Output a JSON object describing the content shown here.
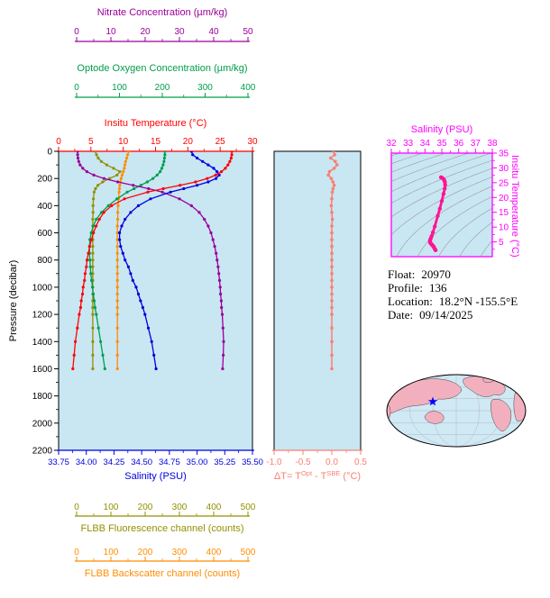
{
  "info": {
    "lines": [
      {
        "label": "Float:",
        "value": "20970"
      },
      {
        "label": "Profile:",
        "value": "136"
      },
      {
        "label": "Location:",
        "value": "18.2°N -155.5°E"
      },
      {
        "label": "Date:",
        "value": "09/14/2025"
      }
    ]
  },
  "colors": {
    "nitrate": "#990099",
    "oxygen": "#009e49",
    "temperature": "#ff0000",
    "salinity": "#0000dd",
    "fluorescence": "#919100",
    "backscatter": "#ff8c00",
    "delta_t": "#fa8072",
    "ts_profile": "#ff1493",
    "ts_frame": "#ff00ff",
    "plot_bg": "#c9e6f3",
    "map_land": "#f2b0bf",
    "map_ocean": "#cfe9f5",
    "map_star": "#0000ff",
    "contour": "#9a9a9a",
    "frame": "#000000"
  },
  "chart_data": [
    {
      "type": "line",
      "title": "Float vertical profiles vs pressure",
      "ylabel": "Pressure (decibar)",
      "ylim": [
        0,
        2200
      ],
      "y_ticks": [
        0,
        200,
        400,
        600,
        800,
        1000,
        1200,
        1400,
        1600,
        1800,
        2000,
        2200
      ],
      "pressure": [
        0,
        25,
        50,
        75,
        100,
        125,
        150,
        175,
        200,
        225,
        250,
        275,
        300,
        350,
        400,
        450,
        500,
        550,
        600,
        650,
        700,
        750,
        800,
        850,
        900,
        950,
        1000,
        1050,
        1100,
        1150,
        1200,
        1300,
        1400,
        1500,
        1600
      ],
      "series": [
        {
          "name": "nitrate",
          "label": "Nitrate Concentration (µm/kg)",
          "xlim": [
            0,
            50
          ],
          "ticks": [
            "0",
            "10",
            "20",
            "30",
            "40",
            "50"
          ],
          "values": [
            0.3,
            0.3,
            0.4,
            0.6,
            1.0,
            1.8,
            3.0,
            5.0,
            8.0,
            12.0,
            16.5,
            21.0,
            25.0,
            30.0,
            33.5,
            35.8,
            37.3,
            38.4,
            39.2,
            39.8,
            40.3,
            40.7,
            41.0,
            41.3,
            41.5,
            41.7,
            41.9,
            42.0,
            42.2,
            42.3,
            42.5,
            42.7,
            42.9,
            42.8,
            42.6
          ]
        },
        {
          "name": "oxygen",
          "label": "Optode Oxygen Concentration (µm/kg)",
          "xlim": [
            0,
            400
          ],
          "ticks": [
            "0",
            "100",
            "200",
            "300",
            "400"
          ],
          "values": [
            206,
            206,
            205,
            204,
            202,
            199,
            195,
            188,
            178,
            165,
            150,
            134,
            118,
            94,
            74,
            58,
            46,
            39,
            34,
            31,
            30,
            30,
            31,
            32,
            33,
            35,
            37,
            39,
            41,
            43,
            46,
            51,
            56,
            61,
            66
          ]
        },
        {
          "name": "temperature",
          "label": "Insitu Temperature (°C)",
          "xlim": [
            0,
            30
          ],
          "ticks": [
            "0",
            "5",
            "10",
            "15",
            "20",
            "25",
            "30"
          ],
          "values": [
            26.8,
            26.8,
            26.7,
            26.5,
            26.2,
            25.8,
            25.2,
            24.3,
            23.0,
            21.2,
            18.8,
            16.2,
            13.8,
            10.2,
            8.2,
            7.0,
            6.3,
            5.8,
            5.4,
            5.1,
            4.8,
            4.6,
            4.4,
            4.3,
            4.1,
            4.0,
            3.8,
            3.7,
            3.5,
            3.4,
            3.2,
            2.9,
            2.6,
            2.4,
            2.2
          ]
        },
        {
          "name": "salinity",
          "label": "Salinity (PSU)",
          "xlim": [
            33.75,
            35.5
          ],
          "ticks": [
            "33.75",
            "34.00",
            "34.25",
            "34.50",
            "34.75",
            "35.00",
            "35.25",
            "35.50"
          ],
          "values": [
            34.95,
            34.96,
            35.0,
            35.05,
            35.1,
            35.15,
            35.18,
            35.2,
            35.17,
            35.1,
            35.0,
            34.88,
            34.76,
            34.58,
            34.47,
            34.4,
            34.35,
            34.32,
            34.3,
            34.3,
            34.31,
            34.33,
            34.35,
            34.38,
            34.4,
            34.42,
            34.45,
            34.47,
            34.49,
            34.51,
            34.53,
            34.56,
            34.59,
            34.61,
            34.63
          ]
        },
        {
          "name": "fluorescence",
          "label": "FLBB Fluorescence channel (counts)",
          "xlim": [
            0,
            500
          ],
          "ticks": [
            "0",
            "100",
            "200",
            "300",
            "400",
            "500"
          ],
          "values": [
            55,
            58,
            63,
            72,
            88,
            108,
            126,
            118,
            96,
            76,
            62,
            55,
            51,
            49,
            48,
            48,
            47,
            47,
            47,
            47,
            47,
            47,
            47,
            47,
            47,
            47,
            47,
            47,
            47,
            47,
            47,
            47,
            47,
            47,
            47
          ]
        },
        {
          "name": "backscatter",
          "label": "FLBB Backscatter channel (counts)",
          "xlim": [
            0,
            500
          ],
          "ticks": [
            "0",
            "100",
            "200",
            "300",
            "400",
            "500"
          ],
          "values": [
            152,
            149,
            146,
            143,
            141,
            139,
            136,
            133,
            130,
            128,
            126,
            125,
            124,
            122,
            121,
            120,
            120,
            119,
            119,
            119,
            119,
            119,
            119,
            119,
            119,
            119,
            119,
            119,
            119,
            119,
            119,
            119,
            119,
            119,
            119
          ]
        }
      ]
    },
    {
      "type": "line",
      "name": "delta-t",
      "title_parts": [
        "ΔT= T",
        "Opt",
        " - T",
        "SBE",
        " (°C)"
      ],
      "xlim": [
        -1.0,
        0.5
      ],
      "ticks": [
        "-1.0",
        "-0.5",
        "0.0",
        "0.5"
      ],
      "values": [
        0.03,
        0.05,
        -0.02,
        0.06,
        0.09,
        0.04,
        -0.04,
        -0.06,
        -0.01,
        0.02,
        0.04,
        0.02,
        0.01,
        0.0,
        -0.01,
        0.0,
        0.01,
        0.0,
        0.0,
        0.0,
        0.0,
        0.0,
        0.0,
        0.0,
        0.0,
        0.0,
        0.0,
        0.0,
        0.0,
        0.0,
        0.0,
        0.0,
        0.0,
        0.0,
        0.0
      ]
    },
    {
      "type": "scatter",
      "name": "ts-diagram",
      "title": "Salinity (PSU)",
      "ylabel": "Insitu Temperature (°C)",
      "xlim": [
        32,
        38
      ],
      "ylim": [
        0,
        35
      ],
      "x_ticks": [
        "32",
        "33",
        "34",
        "35",
        "36",
        "37",
        "38"
      ],
      "y_ticks": [
        "35",
        "30",
        "25",
        "20",
        "15",
        "10",
        "5"
      ],
      "sigma_levels": [
        18,
        19,
        20,
        21,
        22,
        23,
        24,
        25,
        26,
        27,
        28,
        29,
        30
      ],
      "salinity": [
        34.95,
        34.96,
        35.0,
        35.05,
        35.1,
        35.15,
        35.18,
        35.2,
        35.17,
        35.1,
        35.0,
        34.88,
        34.76,
        34.58,
        34.47,
        34.4,
        34.35,
        34.32,
        34.3,
        34.3,
        34.31,
        34.33,
        34.35,
        34.38,
        34.4,
        34.42,
        34.45,
        34.47,
        34.49,
        34.51,
        34.53,
        34.56,
        34.59,
        34.61,
        34.63
      ],
      "temperature": [
        26.8,
        26.8,
        26.7,
        26.5,
        26.2,
        25.8,
        25.2,
        24.3,
        23.0,
        21.2,
        18.8,
        16.2,
        13.8,
        10.2,
        8.2,
        7.0,
        6.3,
        5.8,
        5.4,
        5.1,
        4.8,
        4.6,
        4.4,
        4.3,
        4.1,
        4.0,
        3.8,
        3.7,
        3.5,
        3.4,
        3.2,
        2.9,
        2.6,
        2.4,
        2.2
      ]
    }
  ]
}
